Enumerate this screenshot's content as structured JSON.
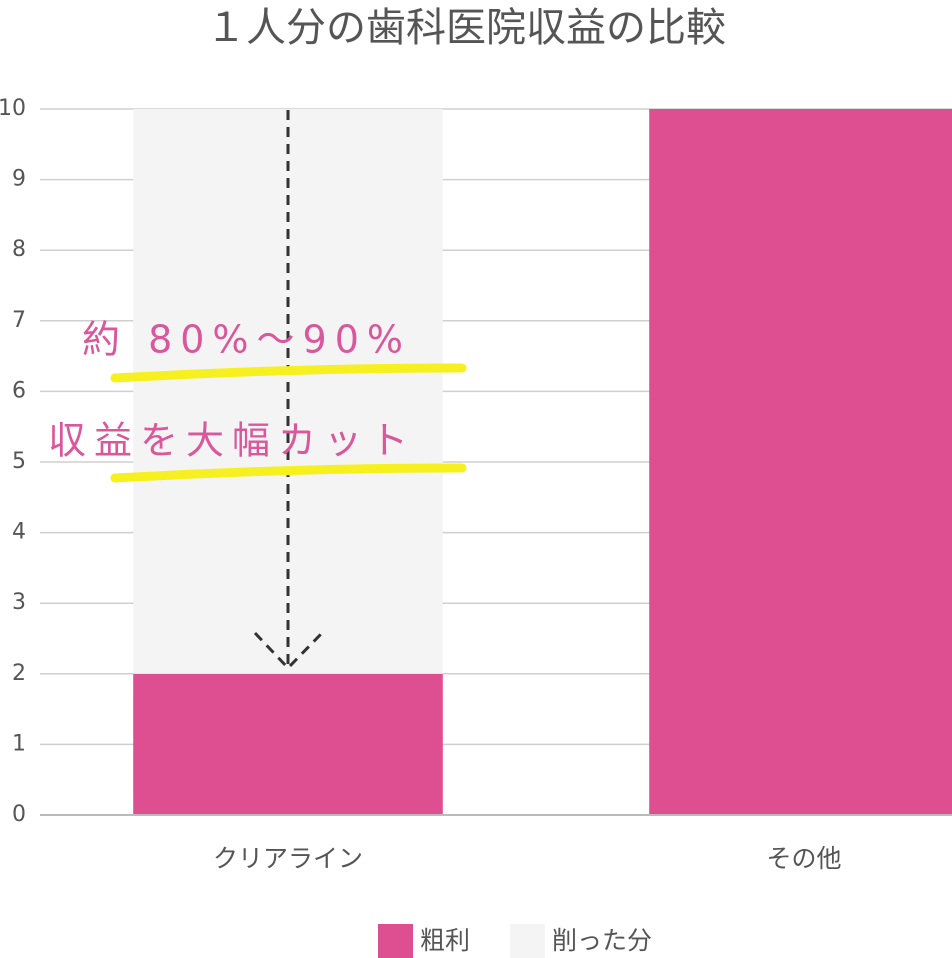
{
  "chart_data": {
    "type": "stacked_bar",
    "title": "１人分の歯科医院収益の比較",
    "categories": [
      "クリアライン",
      "その他"
    ],
    "series": [
      {
        "name": "粗利",
        "color": "#de4f91",
        "values": [
          2,
          10
        ]
      },
      {
        "name": "削った分",
        "color": "#f4f4f4",
        "values": [
          8,
          0
        ]
      }
    ],
    "ylim": [
      0,
      10
    ],
    "yticks": [
      0,
      1,
      2,
      3,
      4,
      5,
      6,
      7,
      8,
      9,
      10
    ],
    "grid": true,
    "legend": "bottom",
    "annotations": [
      "約 80%～90%",
      "収益を大幅カット"
    ]
  }
}
